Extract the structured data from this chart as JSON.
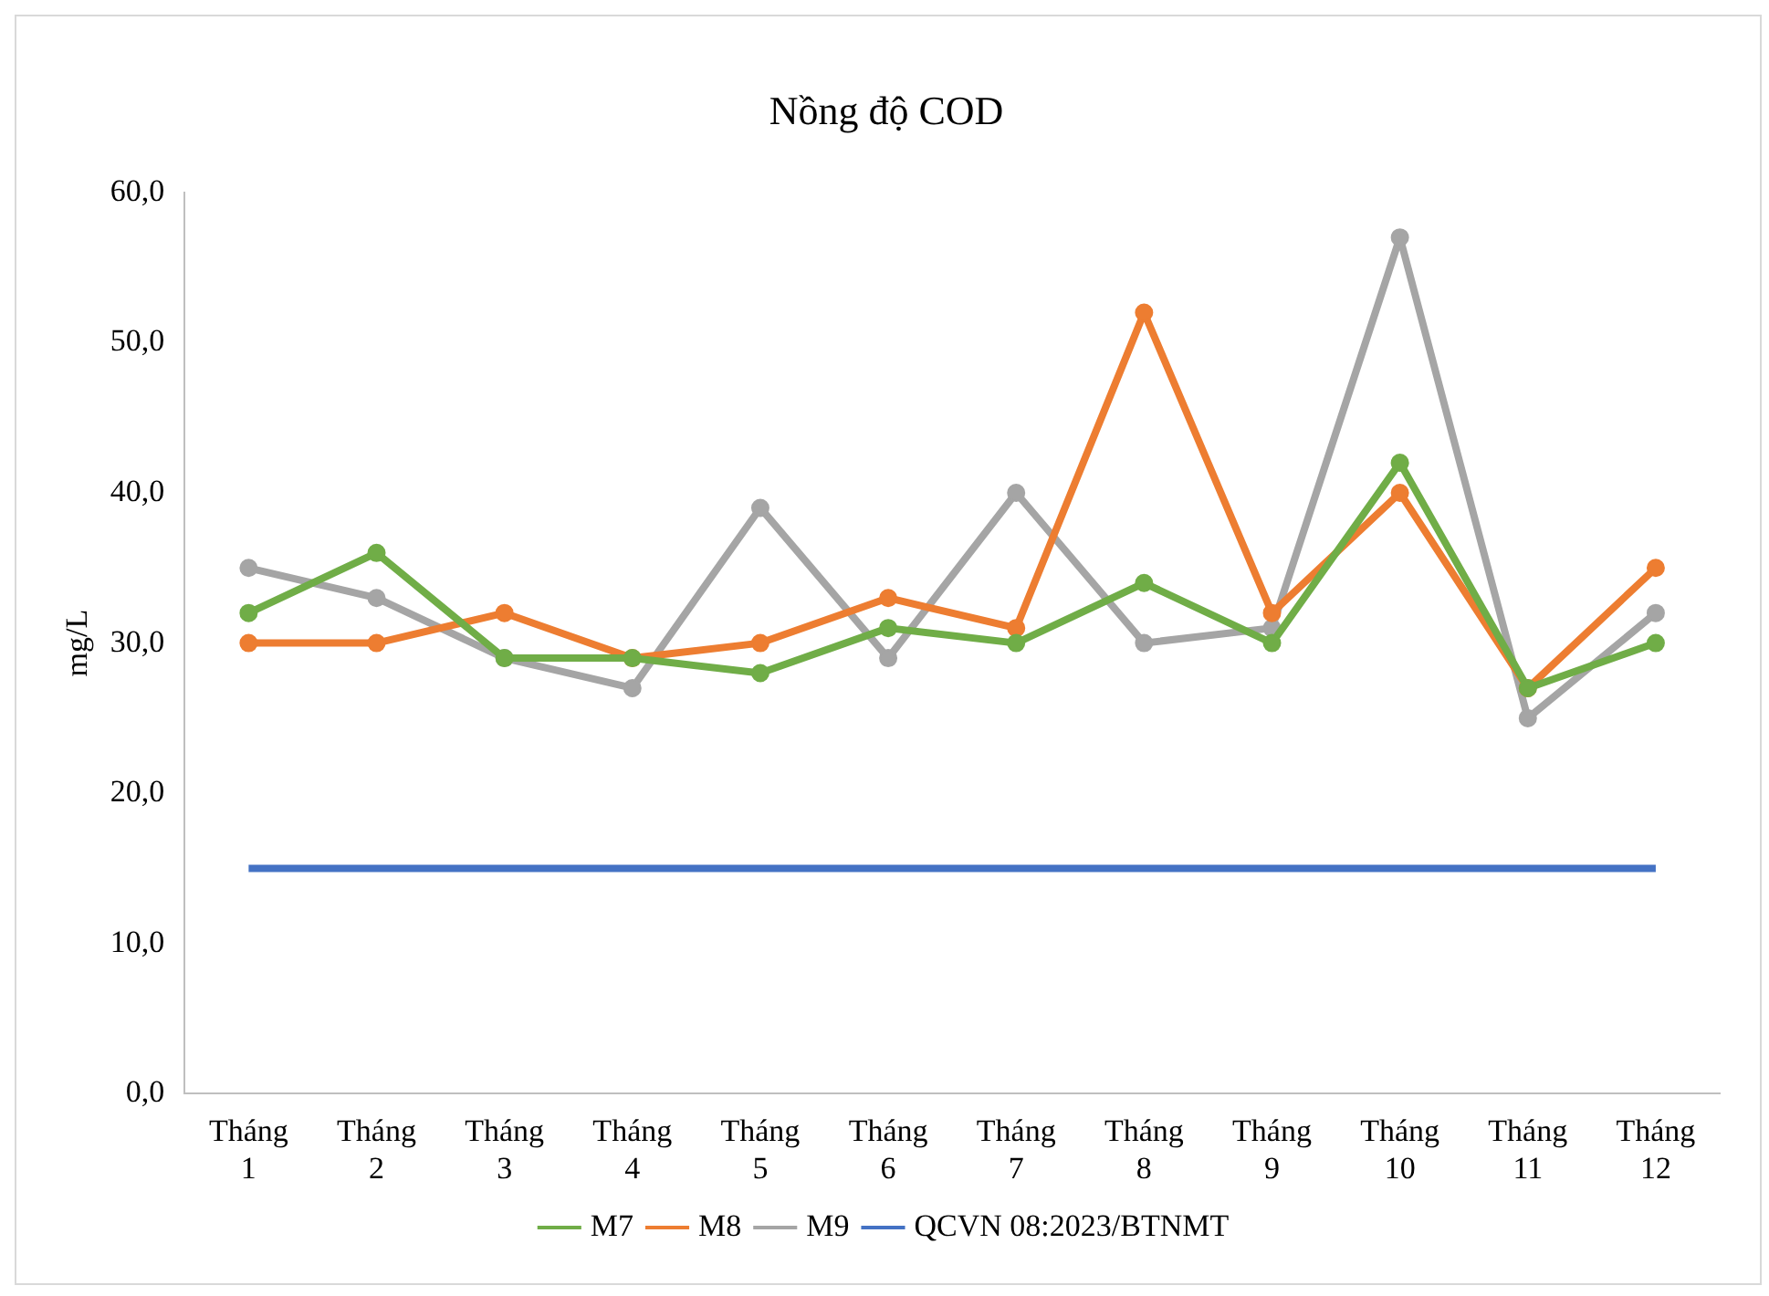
{
  "chart_data": {
    "type": "line",
    "title": "Nồng độ COD",
    "ylabel": "mg/L",
    "categories": [
      "Tháng 1",
      "Tháng 2",
      "Tháng 3",
      "Tháng 4",
      "Tháng 5",
      "Tháng 6",
      "Tháng 7",
      "Tháng 8",
      "Tháng 9",
      "Tháng 10",
      "Tháng 11",
      "Tháng 12"
    ],
    "series": [
      {
        "name": "M7",
        "color": "#70ad47",
        "values": [
          32,
          36,
          29,
          29,
          28,
          31,
          30,
          34,
          30,
          42,
          27,
          30
        ]
      },
      {
        "name": "M8",
        "color": "#ed7d31",
        "values": [
          30,
          30,
          32,
          29,
          30,
          33,
          31,
          52,
          32,
          40,
          27,
          35
        ]
      },
      {
        "name": "M9",
        "color": "#a5a5a5",
        "values": [
          35,
          33,
          29,
          27,
          39,
          29,
          40,
          30,
          31,
          57,
          25,
          32
        ]
      },
      {
        "name": "QCVN 08:2023/BTNMT",
        "color": "#4472c4",
        "values": [
          15,
          15,
          15,
          15,
          15,
          15,
          15,
          15,
          15,
          15,
          15,
          15
        ],
        "marker": "none"
      }
    ],
    "ylim": [
      0,
      60
    ],
    "yticks": [
      {
        "value": 0,
        "label": "0,0"
      },
      {
        "value": 10,
        "label": "10,0"
      },
      {
        "value": 20,
        "label": "20,0"
      },
      {
        "value": 30,
        "label": "30,0"
      },
      {
        "value": 40,
        "label": "40,0"
      },
      {
        "value": 50,
        "label": "50,0"
      },
      {
        "value": 60,
        "label": "60,0"
      }
    ],
    "grid": false,
    "legend": "bottom",
    "marker": "circle",
    "line_style": "solid"
  }
}
